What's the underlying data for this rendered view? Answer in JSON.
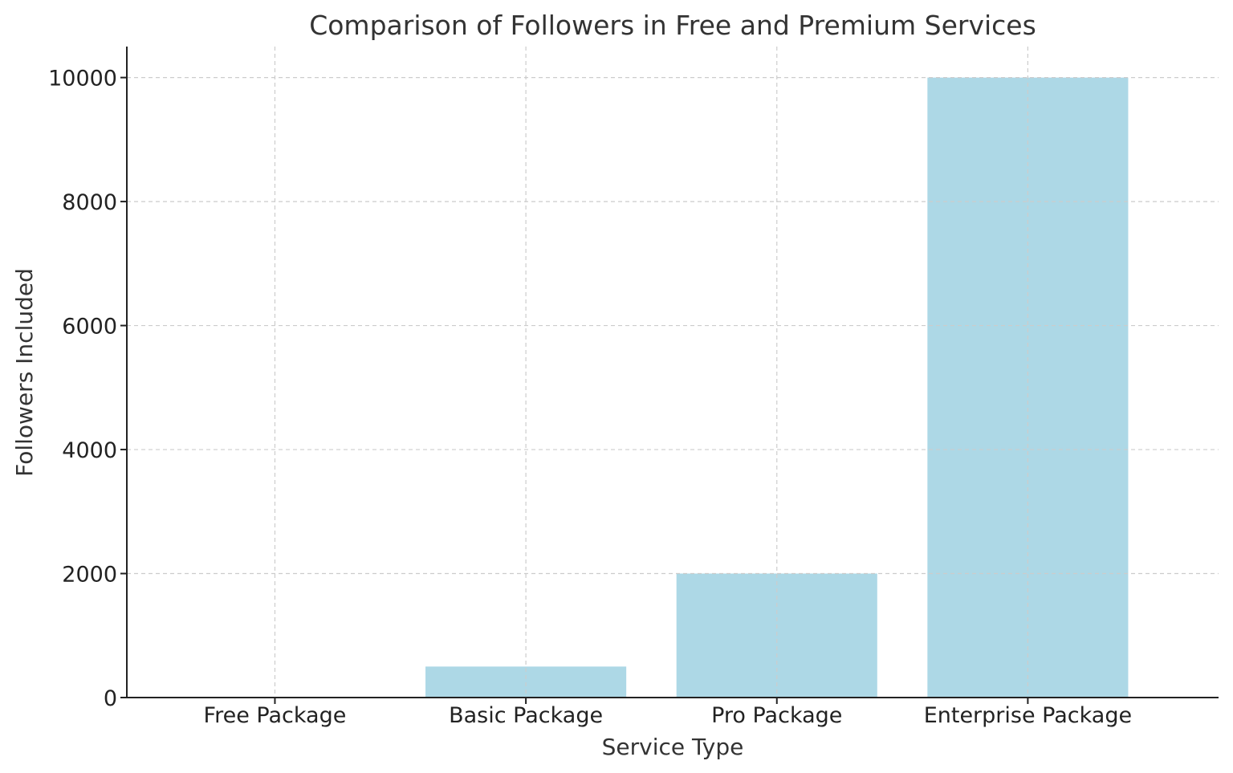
{
  "chart_data": {
    "type": "bar",
    "title": "Comparison of Followers in Free and Premium Services",
    "xlabel": "Service Type",
    "ylabel": "Followers Included",
    "categories": [
      "Free Package",
      "Basic Package",
      "Pro Package",
      "Enterprise Package"
    ],
    "values": [
      10,
      500,
      2000,
      10000
    ],
    "ylim": [
      0,
      10500
    ],
    "yticks": [
      0,
      2000,
      4000,
      6000,
      8000,
      10000
    ],
    "grid": true,
    "colors": {
      "bar": "#add8e6",
      "grid": "#cccccc",
      "axis": "#222222"
    }
  }
}
